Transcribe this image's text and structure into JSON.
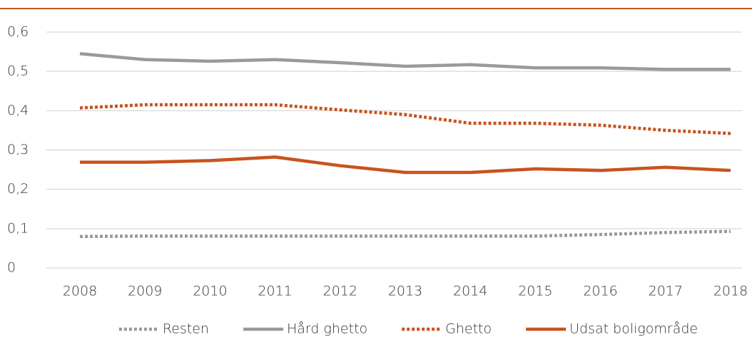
{
  "chart_data": {
    "type": "line",
    "categories": [
      "2008",
      "2009",
      "2010",
      "2011",
      "2012",
      "2013",
      "2014",
      "2015",
      "2016",
      "2017",
      "2018"
    ],
    "series": [
      {
        "name": "Resten",
        "color": "#9a9a9a",
        "style": "dotted",
        "values": [
          0.08,
          0.081,
          0.081,
          0.081,
          0.081,
          0.081,
          0.081,
          0.081,
          0.085,
          0.09,
          0.093
        ]
      },
      {
        "name": "Hård ghetto",
        "color": "#9a9a9a",
        "style": "solid",
        "values": [
          0.545,
          0.53,
          0.526,
          0.53,
          0.522,
          0.513,
          0.517,
          0.509,
          0.509,
          0.505,
          0.505
        ]
      },
      {
        "name": "Ghetto",
        "color": "#c8531e",
        "style": "dotted",
        "values": [
          0.407,
          0.415,
          0.415,
          0.415,
          0.402,
          0.39,
          0.368,
          0.368,
          0.363,
          0.35,
          0.342
        ]
      },
      {
        "name": "Udsat boligområde",
        "color": "#c8531e",
        "style": "solid",
        "values": [
          0.269,
          0.269,
          0.273,
          0.282,
          0.26,
          0.243,
          0.243,
          0.252,
          0.248,
          0.256,
          0.248
        ]
      }
    ],
    "ylim": [
      0,
      0.6
    ],
    "yticks": [
      0,
      {
        "value": 0.1,
        "label": "0,1"
      },
      {
        "value": 0.2,
        "label": "0,2"
      },
      {
        "value": 0.3,
        "label": "0,3"
      },
      {
        "value": 0.4,
        "label": "0,4"
      },
      {
        "value": 0.5,
        "label": "0,5"
      },
      {
        "value": 0.6,
        "label": "0,6"
      }
    ],
    "grid": true,
    "legend": "bottom"
  }
}
